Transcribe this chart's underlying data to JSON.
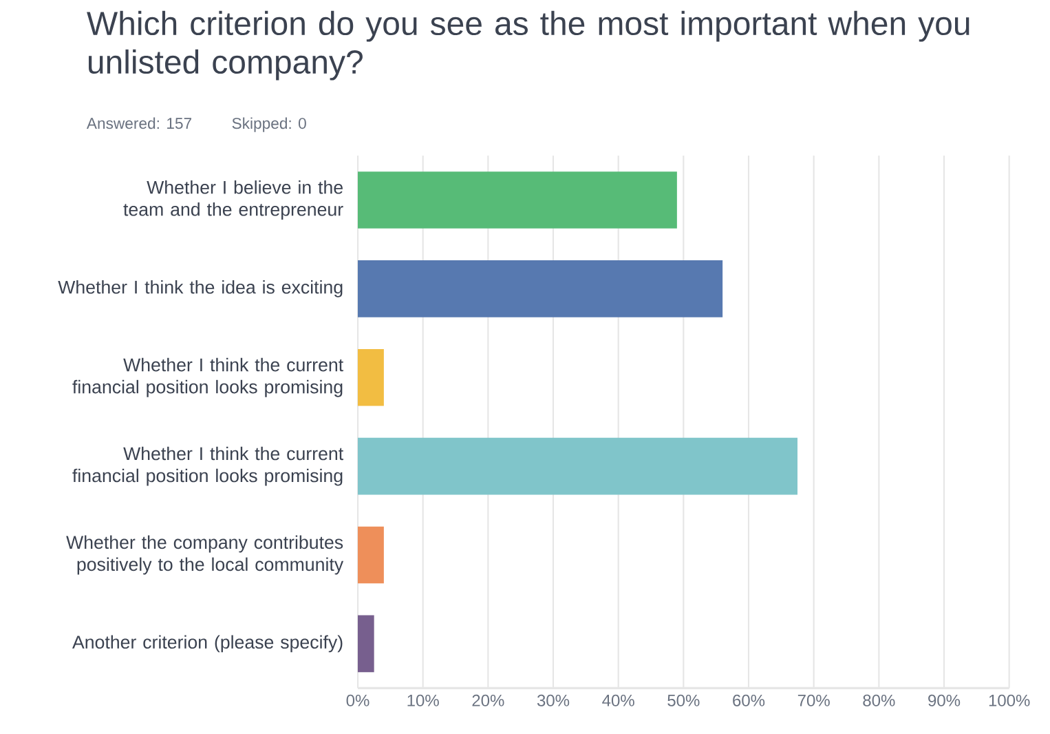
{
  "chart_data": {
    "type": "bar",
    "orientation": "horizontal",
    "title": "Which criterion do you see as the most important when you unlisted company?",
    "subtitle": "Answered: 157",
    "annotations": [
      "Skipped: 0"
    ],
    "categories": [
      "Whether I believe in the team and the entrepreneur",
      "Whether I think the idea is exciting",
      "Whether I think the current financial position looks promising",
      "Whether I think the current financial position looks promising",
      "Whether the company contributes positively to the local community",
      "Another criterion (please specify)"
    ],
    "values": [
      49,
      56,
      4,
      67.5,
      4,
      2.5
    ],
    "colors": [
      "#57bb77",
      "#5779b0",
      "#f2bd42",
      "#80c5ca",
      "#ee8f5a",
      "#775f8e"
    ],
    "xlim": [
      0,
      100
    ],
    "xticks": [
      {
        "value": 0,
        "label": "0%"
      },
      {
        "value": 10,
        "label": "10%"
      },
      {
        "value": 20,
        "label": "20%"
      },
      {
        "value": 30,
        "label": "30%"
      },
      {
        "value": 40,
        "label": "40%"
      },
      {
        "value": 50,
        "label": "50%"
      },
      {
        "value": 60,
        "label": "60%"
      },
      {
        "value": 70,
        "label": "70%"
      },
      {
        "value": 80,
        "label": "80%"
      },
      {
        "value": 90,
        "label": "90%"
      },
      {
        "value": 100,
        "label": "100%"
      }
    ],
    "grid": "x"
  }
}
